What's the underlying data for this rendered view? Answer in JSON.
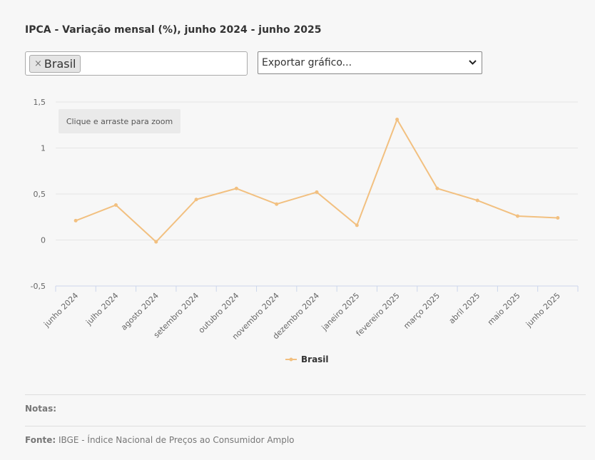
{
  "header": {
    "title": "IPCA - Variação mensal (%), junho 2024 - junho 2025"
  },
  "filter": {
    "tag_remove": "×",
    "tag_label": "Brasil"
  },
  "export": {
    "selected": "Exportar gráfico..."
  },
  "zoom_hint": "Clique e arraste para zoom",
  "chart_data": {
    "type": "line",
    "title": "IPCA - Variação mensal (%), junho 2024 - junho 2025",
    "xlabel": "",
    "ylabel": "",
    "ylim": [
      -0.5,
      1.5
    ],
    "yticks": [
      -0.5,
      0,
      0.5,
      1,
      1.5
    ],
    "ytick_labels": [
      "-0,5",
      "0",
      "0,5",
      "1",
      "1,5"
    ],
    "grid": true,
    "legend_position": "bottom-center",
    "categories": [
      "junho 2024",
      "julho 2024",
      "agosto 2024",
      "setembro 2024",
      "outubro 2024",
      "novembro 2024",
      "dezembro 2024",
      "janeiro 2025",
      "fevereiro 2025",
      "março 2025",
      "abril 2025",
      "maio 2025",
      "junho 2025"
    ],
    "series": [
      {
        "name": "Brasil",
        "color": "#f2c080",
        "values": [
          0.21,
          0.38,
          -0.02,
          0.44,
          0.56,
          0.39,
          0.52,
          0.16,
          1.31,
          0.56,
          0.43,
          0.26,
          0.24
        ]
      }
    ]
  },
  "footer": {
    "notes_label": "Notas:",
    "source_label": "Fonte:",
    "source_text": "IBGE - Índice Nacional de Preços ao Consumidor Amplo"
  }
}
